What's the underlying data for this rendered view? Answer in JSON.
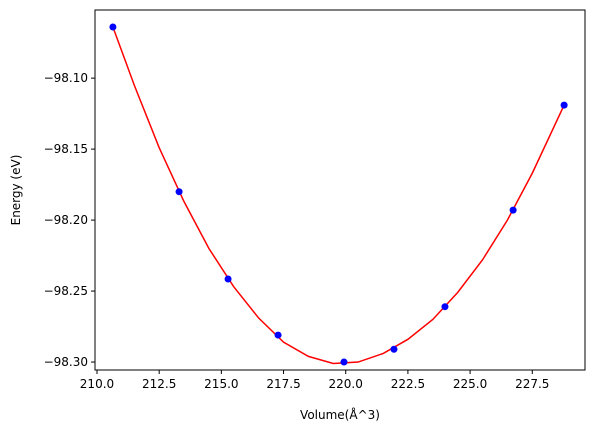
{
  "chart_data": {
    "type": "scatter",
    "xlabel": "Volume(Å^3)",
    "ylabel": "Energy (eV)",
    "xlim": [
      209.92,
      229.62
    ],
    "ylim": [
      -98.3056,
      -98.052
    ],
    "xticks": [
      {
        "value": 210,
        "label": "210.0"
      },
      {
        "value": 212.5,
        "label": "212.5"
      },
      {
        "value": 215,
        "label": "215.0"
      },
      {
        "value": 217.5,
        "label": "217.5"
      },
      {
        "value": 220,
        "label": "220.0"
      },
      {
        "value": 222.5,
        "label": "222.5"
      },
      {
        "value": 225,
        "label": "225.0"
      },
      {
        "value": 227.5,
        "label": "227.5"
      }
    ],
    "yticks": [
      {
        "value": -98.3,
        "label": "−98.30"
      },
      {
        "value": -98.25,
        "label": "−98.25"
      },
      {
        "value": -98.2,
        "label": "−98.20"
      },
      {
        "value": -98.15,
        "label": "−98.15"
      },
      {
        "value": -98.1,
        "label": "−98.10"
      }
    ],
    "series": [
      {
        "type": "line",
        "color": "#ff0000",
        "x": [
          210.64,
          211.5,
          212.5,
          213.5,
          214.5,
          215.5,
          216.5,
          217.5,
          218.5,
          219.5,
          220.5,
          221.5,
          222.5,
          223.5,
          224.5,
          225.5,
          226.5,
          227.5,
          228.78
        ],
        "values": [
          -98.064,
          -98.105,
          -98.149,
          -98.187,
          -98.22,
          -98.247,
          -98.269,
          -98.286,
          -98.296,
          -98.301,
          -98.3,
          -98.294,
          -98.284,
          -98.27,
          -98.251,
          -98.228,
          -98.2,
          -98.167,
          -98.119
        ]
      },
      {
        "type": "scatter",
        "color": "#0000ff",
        "x": [
          210.64,
          213.3,
          215.27,
          217.28,
          219.93,
          221.94,
          223.99,
          226.73,
          228.78
        ],
        "values": [
          -98.064,
          -98.18,
          -98.2415,
          -98.281,
          -98.3,
          -98.291,
          -98.261,
          -98.193,
          -98.119
        ]
      }
    ]
  }
}
